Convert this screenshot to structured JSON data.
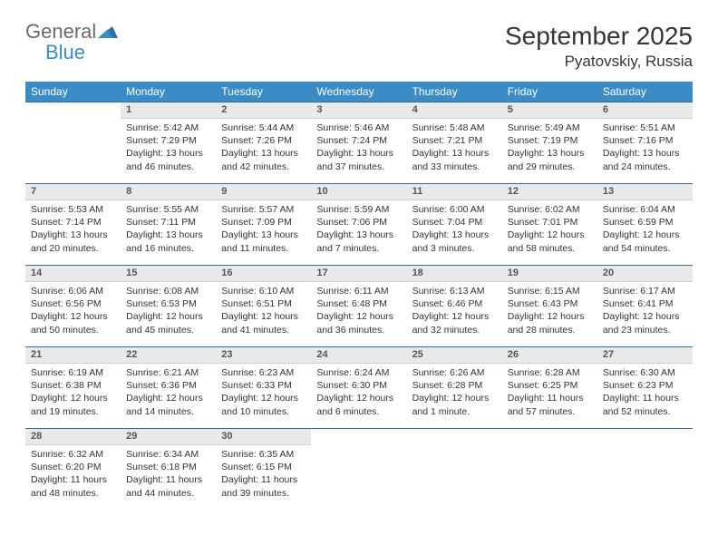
{
  "brand": {
    "word1": "General",
    "word2": "Blue"
  },
  "title": "September 2025",
  "location": "Pyatovskiy, Russia",
  "colors": {
    "header_bg": "#3b8bc4",
    "header_text": "#ffffff",
    "daynum_bg": "#e9e9e9",
    "rule": "#3b6b8c",
    "text": "#333333",
    "brand_gray": "#6a6a6a",
    "brand_blue": "#3b8bc4"
  },
  "weekdays": [
    "Sunday",
    "Monday",
    "Tuesday",
    "Wednesday",
    "Thursday",
    "Friday",
    "Saturday"
  ],
  "weeks": [
    [
      null,
      {
        "n": "1",
        "sr": "Sunrise: 5:42 AM",
        "ss": "Sunset: 7:29 PM",
        "dl": "Daylight: 13 hours and 46 minutes."
      },
      {
        "n": "2",
        "sr": "Sunrise: 5:44 AM",
        "ss": "Sunset: 7:26 PM",
        "dl": "Daylight: 13 hours and 42 minutes."
      },
      {
        "n": "3",
        "sr": "Sunrise: 5:46 AM",
        "ss": "Sunset: 7:24 PM",
        "dl": "Daylight: 13 hours and 37 minutes."
      },
      {
        "n": "4",
        "sr": "Sunrise: 5:48 AM",
        "ss": "Sunset: 7:21 PM",
        "dl": "Daylight: 13 hours and 33 minutes."
      },
      {
        "n": "5",
        "sr": "Sunrise: 5:49 AM",
        "ss": "Sunset: 7:19 PM",
        "dl": "Daylight: 13 hours and 29 minutes."
      },
      {
        "n": "6",
        "sr": "Sunrise: 5:51 AM",
        "ss": "Sunset: 7:16 PM",
        "dl": "Daylight: 13 hours and 24 minutes."
      }
    ],
    [
      {
        "n": "7",
        "sr": "Sunrise: 5:53 AM",
        "ss": "Sunset: 7:14 PM",
        "dl": "Daylight: 13 hours and 20 minutes."
      },
      {
        "n": "8",
        "sr": "Sunrise: 5:55 AM",
        "ss": "Sunset: 7:11 PM",
        "dl": "Daylight: 13 hours and 16 minutes."
      },
      {
        "n": "9",
        "sr": "Sunrise: 5:57 AM",
        "ss": "Sunset: 7:09 PM",
        "dl": "Daylight: 13 hours and 11 minutes."
      },
      {
        "n": "10",
        "sr": "Sunrise: 5:59 AM",
        "ss": "Sunset: 7:06 PM",
        "dl": "Daylight: 13 hours and 7 minutes."
      },
      {
        "n": "11",
        "sr": "Sunrise: 6:00 AM",
        "ss": "Sunset: 7:04 PM",
        "dl": "Daylight: 13 hours and 3 minutes."
      },
      {
        "n": "12",
        "sr": "Sunrise: 6:02 AM",
        "ss": "Sunset: 7:01 PM",
        "dl": "Daylight: 12 hours and 58 minutes."
      },
      {
        "n": "13",
        "sr": "Sunrise: 6:04 AM",
        "ss": "Sunset: 6:59 PM",
        "dl": "Daylight: 12 hours and 54 minutes."
      }
    ],
    [
      {
        "n": "14",
        "sr": "Sunrise: 6:06 AM",
        "ss": "Sunset: 6:56 PM",
        "dl": "Daylight: 12 hours and 50 minutes."
      },
      {
        "n": "15",
        "sr": "Sunrise: 6:08 AM",
        "ss": "Sunset: 6:53 PM",
        "dl": "Daylight: 12 hours and 45 minutes."
      },
      {
        "n": "16",
        "sr": "Sunrise: 6:10 AM",
        "ss": "Sunset: 6:51 PM",
        "dl": "Daylight: 12 hours and 41 minutes."
      },
      {
        "n": "17",
        "sr": "Sunrise: 6:11 AM",
        "ss": "Sunset: 6:48 PM",
        "dl": "Daylight: 12 hours and 36 minutes."
      },
      {
        "n": "18",
        "sr": "Sunrise: 6:13 AM",
        "ss": "Sunset: 6:46 PM",
        "dl": "Daylight: 12 hours and 32 minutes."
      },
      {
        "n": "19",
        "sr": "Sunrise: 6:15 AM",
        "ss": "Sunset: 6:43 PM",
        "dl": "Daylight: 12 hours and 28 minutes."
      },
      {
        "n": "20",
        "sr": "Sunrise: 6:17 AM",
        "ss": "Sunset: 6:41 PM",
        "dl": "Daylight: 12 hours and 23 minutes."
      }
    ],
    [
      {
        "n": "21",
        "sr": "Sunrise: 6:19 AM",
        "ss": "Sunset: 6:38 PM",
        "dl": "Daylight: 12 hours and 19 minutes."
      },
      {
        "n": "22",
        "sr": "Sunrise: 6:21 AM",
        "ss": "Sunset: 6:36 PM",
        "dl": "Daylight: 12 hours and 14 minutes."
      },
      {
        "n": "23",
        "sr": "Sunrise: 6:23 AM",
        "ss": "Sunset: 6:33 PM",
        "dl": "Daylight: 12 hours and 10 minutes."
      },
      {
        "n": "24",
        "sr": "Sunrise: 6:24 AM",
        "ss": "Sunset: 6:30 PM",
        "dl": "Daylight: 12 hours and 6 minutes."
      },
      {
        "n": "25",
        "sr": "Sunrise: 6:26 AM",
        "ss": "Sunset: 6:28 PM",
        "dl": "Daylight: 12 hours and 1 minute."
      },
      {
        "n": "26",
        "sr": "Sunrise: 6:28 AM",
        "ss": "Sunset: 6:25 PM",
        "dl": "Daylight: 11 hours and 57 minutes."
      },
      {
        "n": "27",
        "sr": "Sunrise: 6:30 AM",
        "ss": "Sunset: 6:23 PM",
        "dl": "Daylight: 11 hours and 52 minutes."
      }
    ],
    [
      {
        "n": "28",
        "sr": "Sunrise: 6:32 AM",
        "ss": "Sunset: 6:20 PM",
        "dl": "Daylight: 11 hours and 48 minutes."
      },
      {
        "n": "29",
        "sr": "Sunrise: 6:34 AM",
        "ss": "Sunset: 6:18 PM",
        "dl": "Daylight: 11 hours and 44 minutes."
      },
      {
        "n": "30",
        "sr": "Sunrise: 6:35 AM",
        "ss": "Sunset: 6:15 PM",
        "dl": "Daylight: 11 hours and 39 minutes."
      },
      null,
      null,
      null,
      null
    ]
  ]
}
